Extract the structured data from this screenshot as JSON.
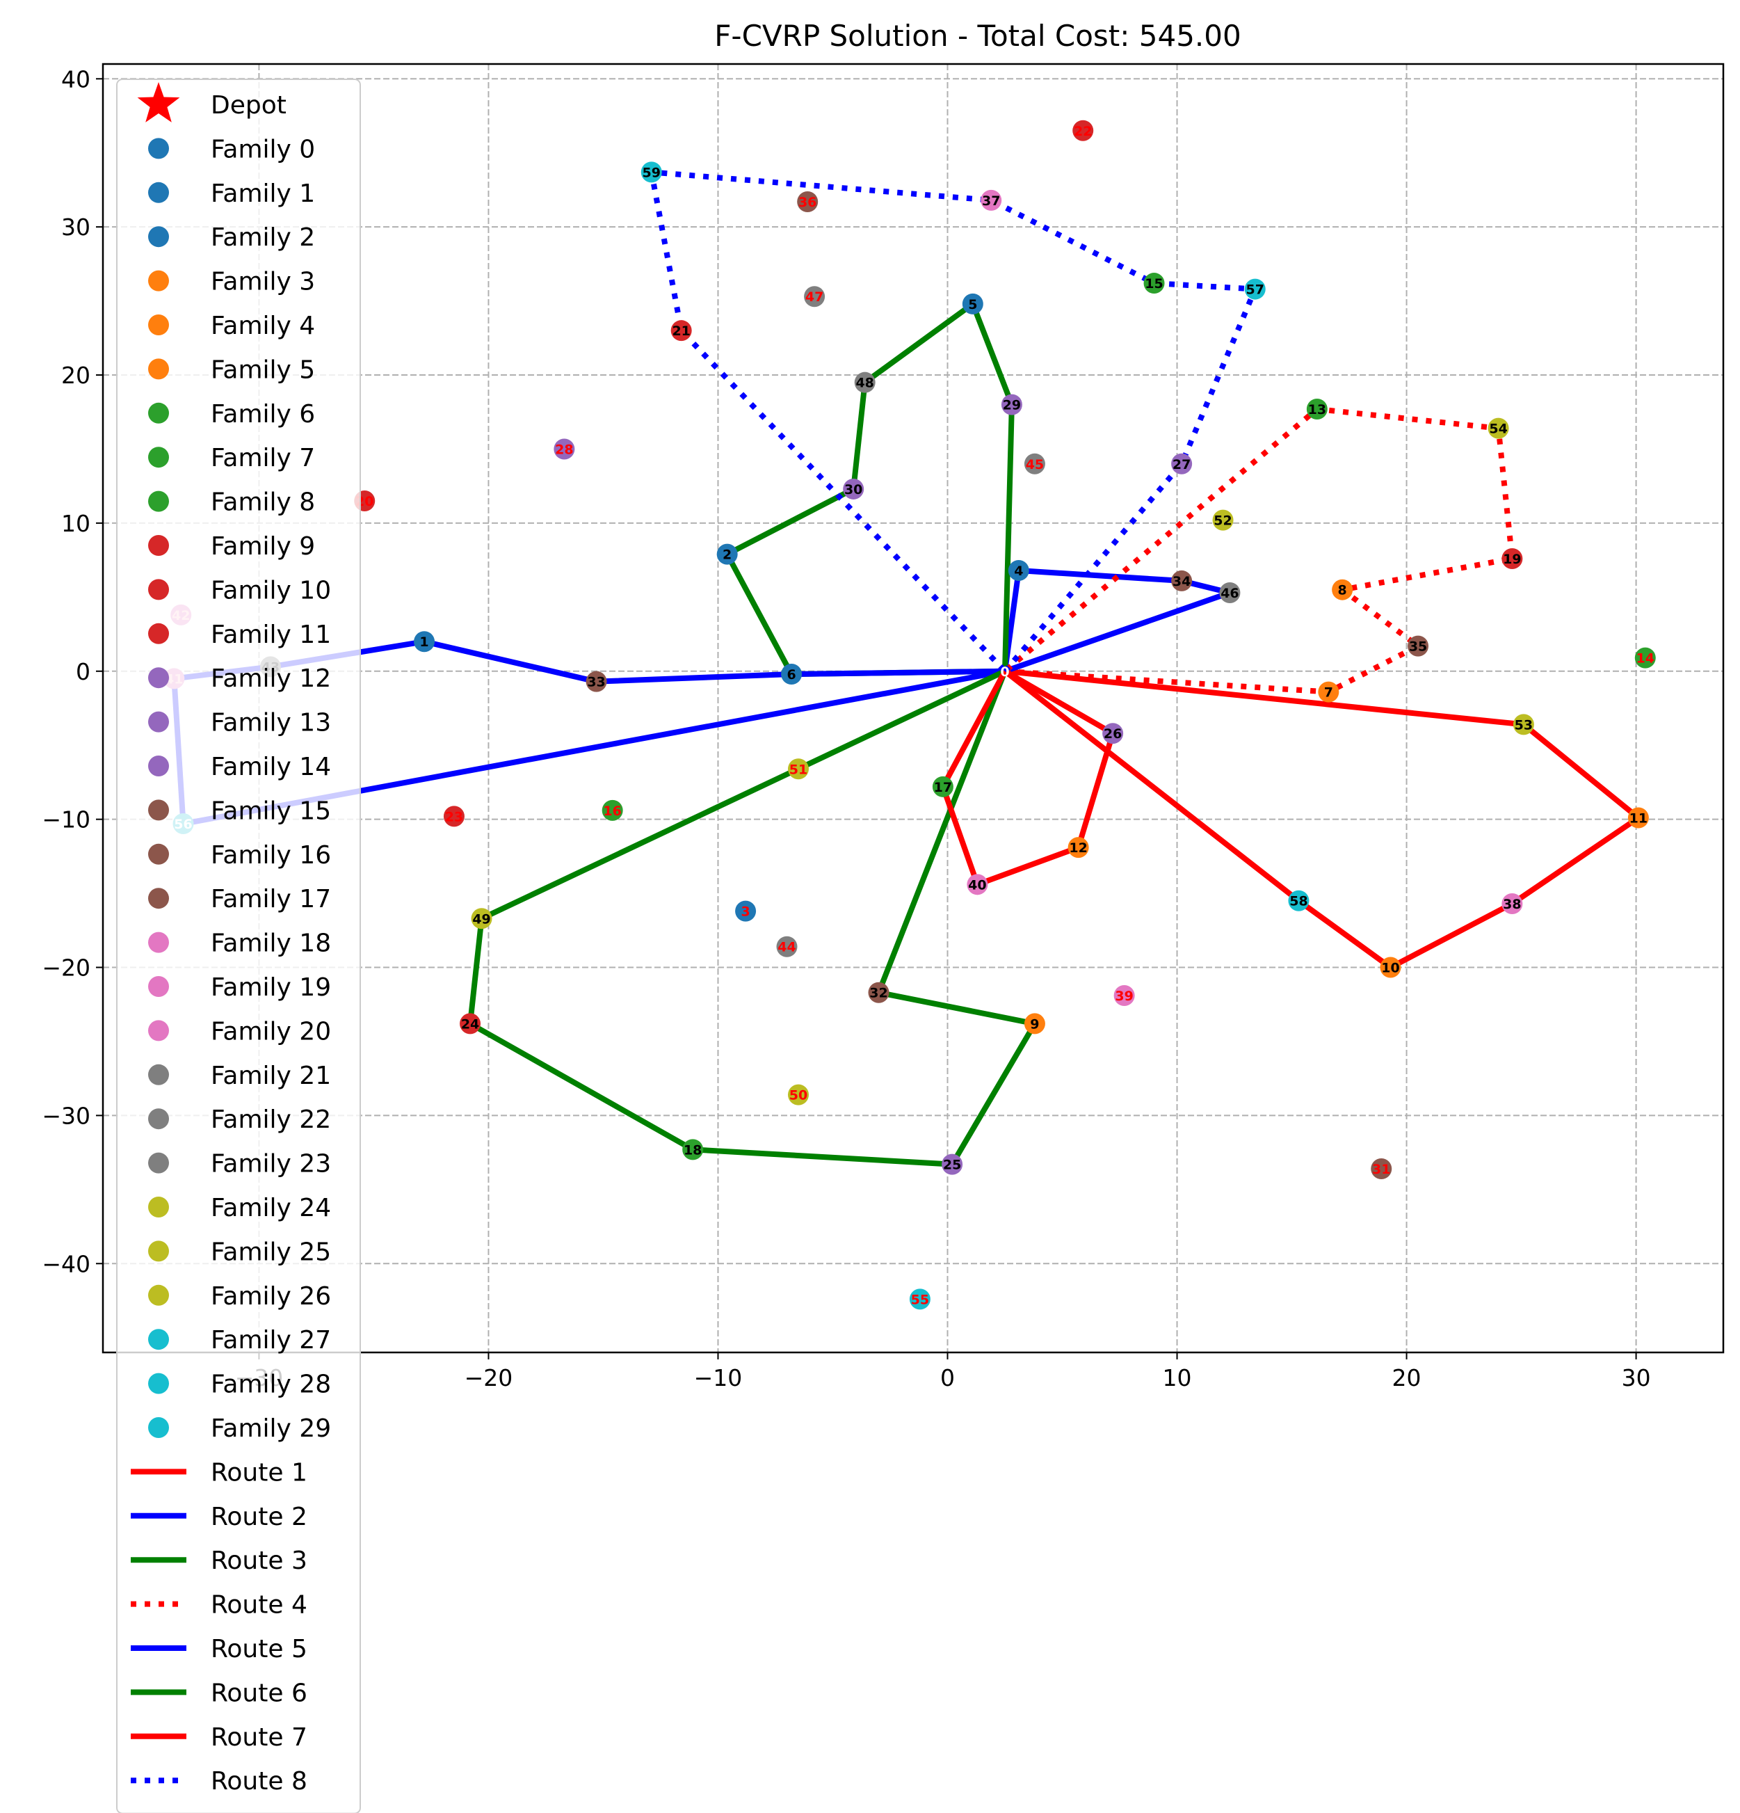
{
  "chart_data": {
    "type": "scatter",
    "title": "F-CVRP Solution - Total Cost: 545.00",
    "xlabel": "",
    "ylabel": "",
    "xlim": [
      -36.8,
      33.8
    ],
    "ylim": [
      -46,
      41
    ],
    "x_ticks": [
      -30,
      -20,
      -10,
      0,
      10,
      20,
      30
    ],
    "y_ticks": [
      -40,
      -30,
      -20,
      -10,
      0,
      10,
      20,
      30,
      40
    ],
    "x_tick_labels": [
      "−30",
      "−20",
      "−10",
      "0",
      "10",
      "20",
      "30"
    ],
    "y_tick_labels": [
      "−40",
      "−30",
      "−20",
      "−10",
      "0",
      "10",
      "20",
      "30",
      "40"
    ],
    "grid": true,
    "legend_position": "upper-left",
    "depot": {
      "label": "Depot",
      "x": 2.5,
      "y": 0,
      "color": "#ff0000"
    },
    "families": [
      {
        "name": "Family 0",
        "color": "#1f77b4"
      },
      {
        "name": "Family 1",
        "color": "#1f77b4"
      },
      {
        "name": "Family 2",
        "color": "#1f77b4"
      },
      {
        "name": "Family 3",
        "color": "#ff7f0e"
      },
      {
        "name": "Family 4",
        "color": "#ff7f0e"
      },
      {
        "name": "Family 5",
        "color": "#ff7f0e"
      },
      {
        "name": "Family 6",
        "color": "#2ca02c"
      },
      {
        "name": "Family 7",
        "color": "#2ca02c"
      },
      {
        "name": "Family 8",
        "color": "#2ca02c"
      },
      {
        "name": "Family 9",
        "color": "#d62728"
      },
      {
        "name": "Family 10",
        "color": "#d62728"
      },
      {
        "name": "Family 11",
        "color": "#d62728"
      },
      {
        "name": "Family 12",
        "color": "#9467bd"
      },
      {
        "name": "Family 13",
        "color": "#9467bd"
      },
      {
        "name": "Family 14",
        "color": "#9467bd"
      },
      {
        "name": "Family 15",
        "color": "#8c564b"
      },
      {
        "name": "Family 16",
        "color": "#8c564b"
      },
      {
        "name": "Family 17",
        "color": "#8c564b"
      },
      {
        "name": "Family 18",
        "color": "#e377c2"
      },
      {
        "name": "Family 19",
        "color": "#e377c2"
      },
      {
        "name": "Family 20",
        "color": "#e377c2"
      },
      {
        "name": "Family 21",
        "color": "#7f7f7f"
      },
      {
        "name": "Family 22",
        "color": "#7f7f7f"
      },
      {
        "name": "Family 23",
        "color": "#7f7f7f"
      },
      {
        "name": "Family 24",
        "color": "#bcbd22"
      },
      {
        "name": "Family 25",
        "color": "#bcbd22"
      },
      {
        "name": "Family 26",
        "color": "#bcbd22"
      },
      {
        "name": "Family 27",
        "color": "#17becf"
      },
      {
        "name": "Family 28",
        "color": "#17becf"
      },
      {
        "name": "Family 29",
        "color": "#17becf"
      }
    ],
    "nodes": [
      {
        "id": "1",
        "x": -22.8,
        "y": 2.0,
        "color": "#1f77b4",
        "label_color": "#000000"
      },
      {
        "id": "2",
        "x": -9.6,
        "y": 7.9,
        "color": "#1f77b4",
        "label_color": "#000000"
      },
      {
        "id": "3",
        "x": -8.8,
        "y": -16.2,
        "color": "#1f77b4",
        "label_color": "#ff0000"
      },
      {
        "id": "4",
        "x": 3.1,
        "y": 6.8,
        "color": "#1f77b4",
        "label_color": "#000000"
      },
      {
        "id": "5",
        "x": 1.1,
        "y": 24.8,
        "color": "#1f77b4",
        "label_color": "#000000"
      },
      {
        "id": "6",
        "x": -6.8,
        "y": -0.2,
        "color": "#1f77b4",
        "label_color": "#000000"
      },
      {
        "id": "7",
        "x": 16.6,
        "y": -1.4,
        "color": "#ff7f0e",
        "label_color": "#000000"
      },
      {
        "id": "8",
        "x": 17.2,
        "y": 5.5,
        "color": "#ff7f0e",
        "label_color": "#000000"
      },
      {
        "id": "9",
        "x": 3.8,
        "y": -23.8,
        "color": "#ff7f0e",
        "label_color": "#000000"
      },
      {
        "id": "10",
        "x": 19.3,
        "y": -20.0,
        "color": "#ff7f0e",
        "label_color": "#000000"
      },
      {
        "id": "11",
        "x": 30.1,
        "y": -9.9,
        "color": "#ff7f0e",
        "label_color": "#000000"
      },
      {
        "id": "12",
        "x": 5.7,
        "y": -11.9,
        "color": "#ff7f0e",
        "label_color": "#000000"
      },
      {
        "id": "13",
        "x": 16.1,
        "y": 17.7,
        "color": "#2ca02c",
        "label_color": "#000000"
      },
      {
        "id": "14",
        "x": 30.4,
        "y": 0.9,
        "color": "#2ca02c",
        "label_color": "#ff0000"
      },
      {
        "id": "15",
        "x": 9.0,
        "y": 26.2,
        "color": "#2ca02c",
        "label_color": "#000000"
      },
      {
        "id": "16",
        "x": -14.6,
        "y": -9.4,
        "color": "#2ca02c",
        "label_color": "#ff0000"
      },
      {
        "id": "17",
        "x": -0.2,
        "y": -7.8,
        "color": "#2ca02c",
        "label_color": "#000000"
      },
      {
        "id": "18",
        "x": -11.1,
        "y": -32.3,
        "color": "#2ca02c",
        "label_color": "#000000"
      },
      {
        "id": "19",
        "x": 24.6,
        "y": 7.6,
        "color": "#d62728",
        "label_color": "#000000"
      },
      {
        "id": "20",
        "x": -25.4,
        "y": 11.5,
        "color": "#d62728",
        "label_color": "#ff0000"
      },
      {
        "id": "21",
        "x": -11.6,
        "y": 23.0,
        "color": "#d62728",
        "label_color": "#000000"
      },
      {
        "id": "22",
        "x": 5.9,
        "y": 36.5,
        "color": "#d62728",
        "label_color": "#ff0000"
      },
      {
        "id": "23",
        "x": -21.5,
        "y": -9.8,
        "color": "#d62728",
        "label_color": "#ff0000"
      },
      {
        "id": "24",
        "x": -20.8,
        "y": -23.8,
        "color": "#d62728",
        "label_color": "#000000"
      },
      {
        "id": "25",
        "x": 0.2,
        "y": -33.3,
        "color": "#9467bd",
        "label_color": "#000000"
      },
      {
        "id": "26",
        "x": 7.2,
        "y": -4.2,
        "color": "#9467bd",
        "label_color": "#000000"
      },
      {
        "id": "27",
        "x": 10.2,
        "y": 14.0,
        "color": "#9467bd",
        "label_color": "#000000"
      },
      {
        "id": "28",
        "x": -16.7,
        "y": 15.0,
        "color": "#9467bd",
        "label_color": "#ff0000"
      },
      {
        "id": "29",
        "x": 2.8,
        "y": 18.0,
        "color": "#9467bd",
        "label_color": "#000000"
      },
      {
        "id": "30",
        "x": -4.1,
        "y": 12.3,
        "color": "#9467bd",
        "label_color": "#000000"
      },
      {
        "id": "31",
        "x": 18.9,
        "y": -33.6,
        "color": "#8c564b",
        "label_color": "#ff0000"
      },
      {
        "id": "32",
        "x": -3.0,
        "y": -21.7,
        "color": "#8c564b",
        "label_color": "#000000"
      },
      {
        "id": "33",
        "x": -15.3,
        "y": -0.7,
        "color": "#8c564b",
        "label_color": "#000000"
      },
      {
        "id": "34",
        "x": 10.2,
        "y": 6.1,
        "color": "#8c564b",
        "label_color": "#000000"
      },
      {
        "id": "35",
        "x": 20.5,
        "y": 1.7,
        "color": "#8c564b",
        "label_color": "#000000"
      },
      {
        "id": "36",
        "x": -6.1,
        "y": 31.7,
        "color": "#8c564b",
        "label_color": "#ff0000"
      },
      {
        "id": "37",
        "x": 1.9,
        "y": 31.8,
        "color": "#e377c2",
        "label_color": "#000000"
      },
      {
        "id": "38",
        "x": 24.6,
        "y": -15.7,
        "color": "#e377c2",
        "label_color": "#000000"
      },
      {
        "id": "39",
        "x": 7.7,
        "y": -21.9,
        "color": "#e377c2",
        "label_color": "#ff0000"
      },
      {
        "id": "40",
        "x": 1.3,
        "y": -14.4,
        "color": "#e377c2",
        "label_color": "#000000"
      },
      {
        "id": "41",
        "x": -33.7,
        "y": -0.5,
        "color": "#e377c2",
        "label_color": "#ffc0cb"
      },
      {
        "id": "42",
        "x": -33.4,
        "y": 3.8,
        "color": "#e377c2",
        "label_color": "#ffc0cb"
      },
      {
        "id": "43",
        "x": -29.5,
        "y": 0.3,
        "color": "#7f7f7f",
        "label_color": "#000000"
      },
      {
        "id": "44",
        "x": -7.0,
        "y": -18.6,
        "color": "#7f7f7f",
        "label_color": "#ff0000"
      },
      {
        "id": "45",
        "x": 3.8,
        "y": 14.0,
        "color": "#7f7f7f",
        "label_color": "#ff0000"
      },
      {
        "id": "46",
        "x": 12.3,
        "y": 5.3,
        "color": "#7f7f7f",
        "label_color": "#000000"
      },
      {
        "id": "47",
        "x": -5.8,
        "y": 25.3,
        "color": "#7f7f7f",
        "label_color": "#ff0000"
      },
      {
        "id": "48",
        "x": -3.6,
        "y": 19.5,
        "color": "#7f7f7f",
        "label_color": "#000000"
      },
      {
        "id": "49",
        "x": -20.3,
        "y": -16.7,
        "color": "#bcbd22",
        "label_color": "#000000"
      },
      {
        "id": "50",
        "x": -6.5,
        "y": -28.6,
        "color": "#bcbd22",
        "label_color": "#ff0000"
      },
      {
        "id": "51",
        "x": -6.5,
        "y": -6.6,
        "color": "#bcbd22",
        "label_color": "#ff0000"
      },
      {
        "id": "52",
        "x": 12.0,
        "y": 10.2,
        "color": "#bcbd22",
        "label_color": "#000000"
      },
      {
        "id": "53",
        "x": 25.1,
        "y": -3.6,
        "color": "#bcbd22",
        "label_color": "#000000"
      },
      {
        "id": "54",
        "x": 24.0,
        "y": 16.4,
        "color": "#bcbd22",
        "label_color": "#000000"
      },
      {
        "id": "55",
        "x": -1.2,
        "y": -42.4,
        "color": "#17becf",
        "label_color": "#ff0000"
      },
      {
        "id": "56",
        "x": -33.3,
        "y": -10.3,
        "color": "#17becf",
        "label_color": "#ffffff"
      },
      {
        "id": "57",
        "x": 13.4,
        "y": 25.8,
        "color": "#17becf",
        "label_color": "#000000"
      },
      {
        "id": "58",
        "x": 15.3,
        "y": -15.5,
        "color": "#17becf",
        "label_color": "#000000"
      },
      {
        "id": "59",
        "x": -12.9,
        "y": 33.7,
        "color": "#17becf",
        "label_color": "#000000"
      }
    ],
    "routes": [
      {
        "name": "Route 1",
        "color": "#ff0000",
        "style": "solid",
        "path": [
          "0",
          "53",
          "11",
          "38",
          "10",
          "58",
          "0"
        ]
      },
      {
        "name": "Route 2",
        "color": "#0000ff",
        "style": "solid",
        "path": [
          "0",
          "46",
          "34",
          "4",
          "0"
        ]
      },
      {
        "name": "Route 3",
        "color": "#008000",
        "style": "solid",
        "path": [
          "0",
          "29",
          "5",
          "48",
          "30",
          "2",
          "6",
          "0"
        ]
      },
      {
        "name": "Route 4",
        "color": "#ff0000",
        "style": "dotted",
        "path": [
          "0",
          "7",
          "35",
          "8",
          "19",
          "54",
          "13",
          "0"
        ]
      },
      {
        "name": "Route 5",
        "color": "#0000ff",
        "style": "solid",
        "path": [
          "0",
          "6",
          "33",
          "1",
          "43",
          "41",
          "56",
          "0"
        ]
      },
      {
        "name": "Route 6",
        "color": "#008000",
        "style": "solid",
        "path": [
          "0",
          "32",
          "9",
          "25",
          "18",
          "24",
          "49",
          "0"
        ]
      },
      {
        "name": "Route 7",
        "color": "#ff0000",
        "style": "solid",
        "path": [
          "0",
          "17",
          "40",
          "12",
          "26",
          "0"
        ]
      },
      {
        "name": "Route 8",
        "color": "#0000ff",
        "style": "dotted",
        "path": [
          "0",
          "27",
          "57",
          "15",
          "37",
          "59",
          "21",
          "0"
        ]
      }
    ]
  }
}
